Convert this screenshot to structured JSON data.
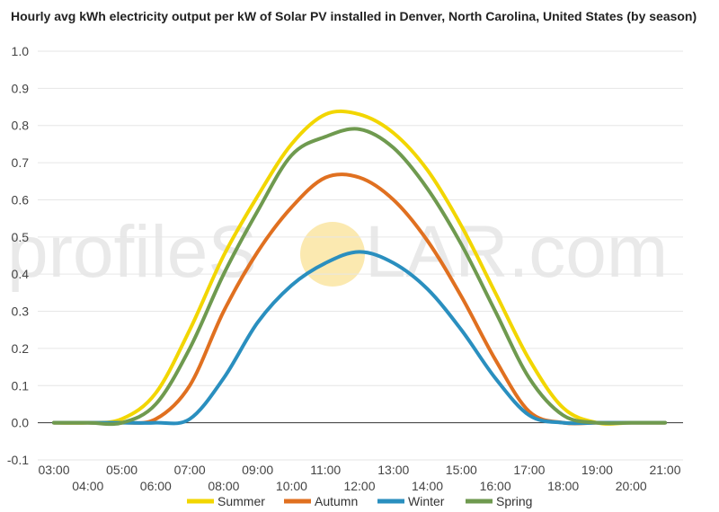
{
  "chart_data": {
    "type": "line",
    "title": "Hourly avg kWh electricity output per kW of Solar PV installed in Denver, North Carolina, United States (by season)",
    "xlabel": "",
    "ylabel": "",
    "ylim": [
      -0.1,
      1.0
    ],
    "yticks": [
      "-0.1",
      "0.0",
      "0.1",
      "0.2",
      "0.3",
      "0.4",
      "0.5",
      "0.6",
      "0.7",
      "0.8",
      "0.9",
      "1.0"
    ],
    "x": [
      "03:00",
      "04:00",
      "05:00",
      "06:00",
      "07:00",
      "08:00",
      "09:00",
      "10:00",
      "11:00",
      "12:00",
      "13:00",
      "14:00",
      "15:00",
      "16:00",
      "17:00",
      "18:00",
      "19:00",
      "20:00",
      "21:00"
    ],
    "grid": true,
    "legend_position": "bottom",
    "series": [
      {
        "name": "Summer",
        "color": "#f2d600",
        "values": [
          0.0,
          0.0,
          0.01,
          0.08,
          0.25,
          0.45,
          0.61,
          0.75,
          0.83,
          0.83,
          0.78,
          0.68,
          0.53,
          0.35,
          0.17,
          0.04,
          0.0,
          0.0,
          0.0
        ]
      },
      {
        "name": "Autumn",
        "color": "#e07020",
        "values": [
          0.0,
          0.0,
          0.0,
          0.01,
          0.1,
          0.3,
          0.46,
          0.58,
          0.66,
          0.66,
          0.6,
          0.49,
          0.34,
          0.17,
          0.03,
          0.0,
          0.0,
          0.0,
          0.0
        ]
      },
      {
        "name": "Winter",
        "color": "#2a8fbf",
        "values": [
          0.0,
          0.0,
          0.0,
          0.0,
          0.01,
          0.12,
          0.27,
          0.37,
          0.43,
          0.46,
          0.43,
          0.36,
          0.25,
          0.12,
          0.02,
          0.0,
          0.0,
          0.0,
          0.0
        ]
      },
      {
        "name": "Spring",
        "color": "#6f9a4f",
        "values": [
          0.0,
          0.0,
          0.0,
          0.05,
          0.2,
          0.4,
          0.57,
          0.72,
          0.77,
          0.79,
          0.74,
          0.63,
          0.48,
          0.3,
          0.12,
          0.02,
          0.0,
          0.0,
          0.0
        ]
      }
    ]
  },
  "watermark": {
    "text_left": "profileS",
    "text_right": "LAR.com",
    "sun_color": "#fbe9b0"
  },
  "colors": {
    "grid": "#e6e6e6",
    "zero_line": "#333333"
  }
}
